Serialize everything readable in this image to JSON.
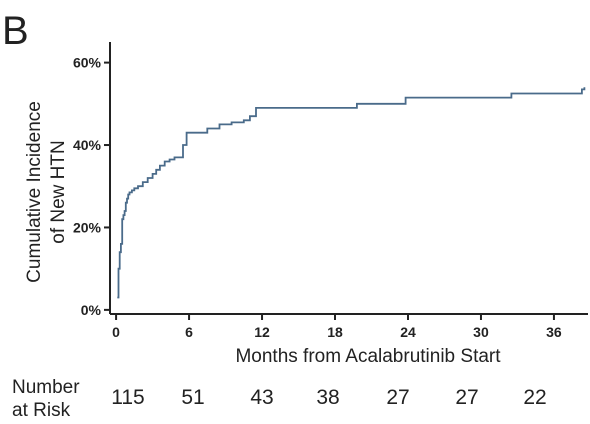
{
  "panel_label": "B",
  "risk_table": {
    "label_line1": "Number",
    "label_line2": "at Risk",
    "values": [
      "115",
      "51",
      "43",
      "38",
      "27",
      "27",
      "22"
    ]
  },
  "chart_data": {
    "type": "line",
    "step": true,
    "title": "",
    "xlabel": "Months from Acalabrutinib Start",
    "ylabel": "Cumulative Incidence of New HTN",
    "ylabel_lines": [
      "Cumulative Incidence",
      "of New HTN"
    ],
    "xlim": [
      -0.5,
      38.8
    ],
    "ylim": [
      -1,
      65
    ],
    "xticks": [
      0,
      6,
      12,
      18,
      24,
      30,
      36
    ],
    "xtick_labels": [
      "0",
      "6",
      "12",
      "18",
      "24",
      "30",
      "36"
    ],
    "yticks": [
      0,
      20,
      40,
      60
    ],
    "ytick_labels": [
      "0%",
      "20%",
      "40%",
      "60%"
    ],
    "grid": false,
    "color": "#4a6b8a",
    "series": [
      {
        "x": [
          0.1,
          0.2,
          0.3,
          0.4,
          0.5,
          0.6,
          0.7,
          0.8,
          0.9,
          1.0,
          1.1,
          1.3,
          1.5,
          1.8,
          2.2,
          2.6,
          3.0,
          3.3,
          3.6,
          4.0,
          4.4,
          4.8,
          5.2,
          5.5,
          5.8,
          7.0,
          7.5,
          8.5,
          9.5,
          10.5,
          11.0,
          11.5,
          19.0,
          19.8,
          23.0,
          23.8,
          32.0,
          32.5,
          38.0,
          38.3,
          38.5
        ],
        "y": [
          3,
          10,
          14,
          16,
          22,
          23,
          24,
          26,
          27,
          28,
          28.5,
          29,
          29.5,
          30,
          31,
          32,
          33,
          34,
          35,
          36,
          36.5,
          37,
          37,
          40,
          43,
          43,
          44,
          45,
          45.5,
          46,
          47,
          49,
          49,
          50,
          50,
          51.5,
          51.5,
          52.5,
          52.5,
          53.5,
          54
        ]
      }
    ]
  }
}
